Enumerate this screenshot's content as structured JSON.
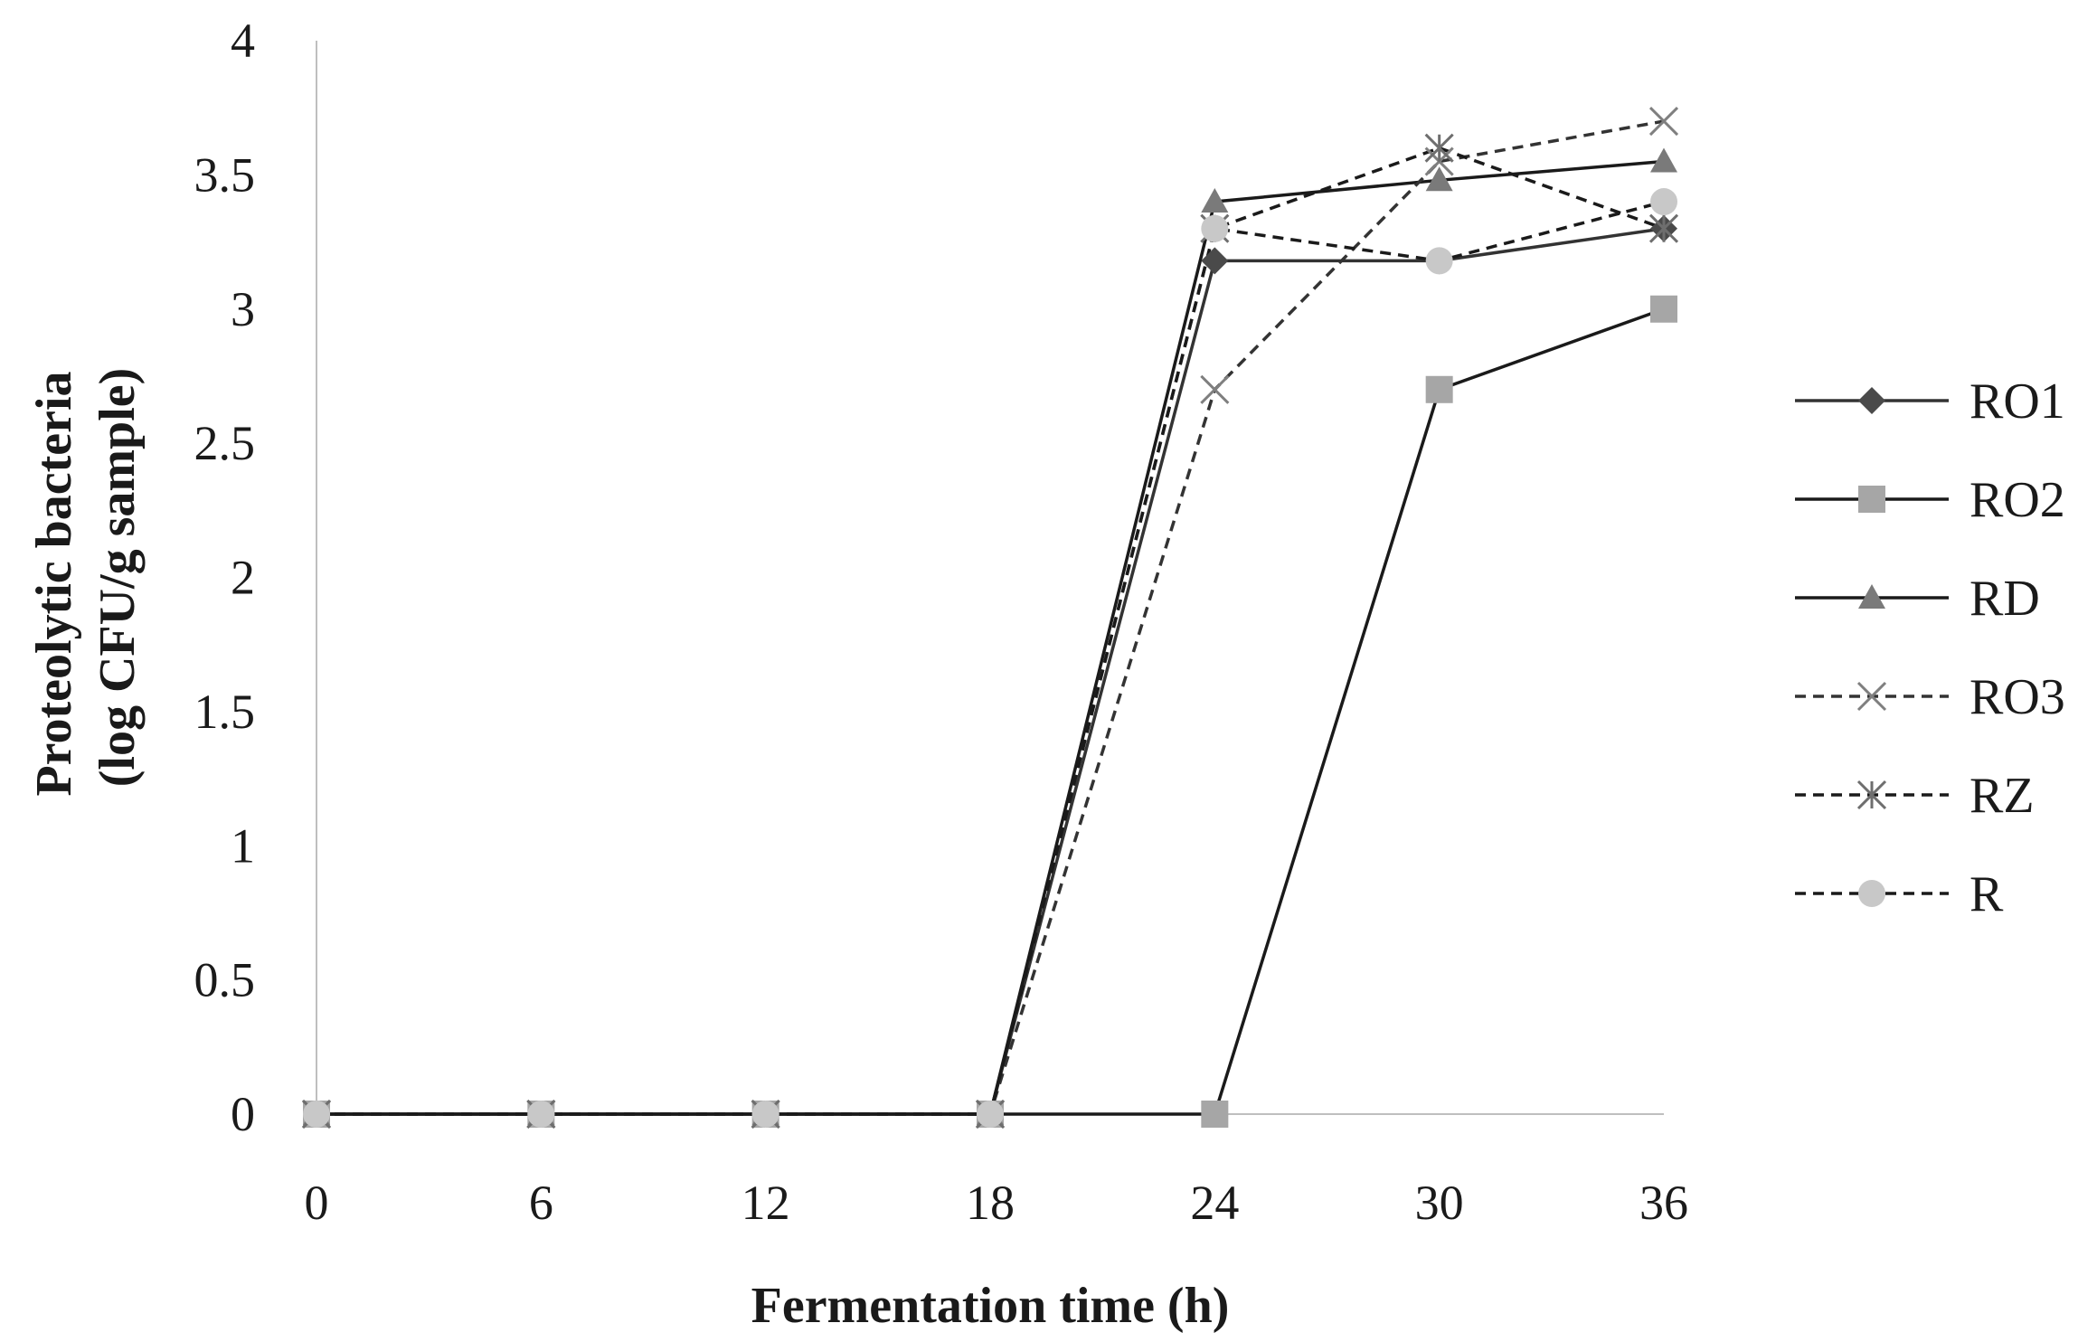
{
  "chart_data": {
    "type": "line",
    "title": "",
    "xlabel": "Fermentation time (h)",
    "ylabel": [
      "Proteolytic bacteria",
      "(log CFU/g sample)"
    ],
    "x": [
      0,
      6,
      12,
      18,
      24,
      30,
      36
    ],
    "x_tick_labels": [
      "0",
      "6",
      "12",
      "18",
      "24",
      "30",
      "36"
    ],
    "ylim": [
      0,
      4
    ],
    "y_ticks": [
      0,
      0.5,
      1,
      1.5,
      2,
      2.5,
      3,
      3.5,
      4
    ],
    "y_tick_labels": [
      "0",
      "0.5",
      "1",
      "1.5",
      "2",
      "2.5",
      "3",
      "3.5",
      "4"
    ],
    "grid": false,
    "legend_position": "right",
    "series": [
      {
        "name": "RO1",
        "values": [
          0,
          0,
          0,
          0,
          3.18,
          3.18,
          3.3
        ],
        "line_color": "#333333",
        "dashed": false,
        "marker": "diamond",
        "marker_color": "#4a4a4a"
      },
      {
        "name": "RO2",
        "values": [
          0,
          0,
          0,
          0,
          0,
          2.7,
          3.0
        ],
        "line_color": "#1a1a1a",
        "dashed": false,
        "marker": "square",
        "marker_color": "#a6a6a6"
      },
      {
        "name": "RD",
        "values": [
          0,
          0,
          0,
          0,
          3.4,
          3.48,
          3.55
        ],
        "line_color": "#1a1a1a",
        "dashed": false,
        "marker": "triangle",
        "marker_color": "#7a7a7a"
      },
      {
        "name": "RO3",
        "values": [
          0,
          0,
          0,
          0,
          2.7,
          3.55,
          3.7
        ],
        "line_color": "#333333",
        "dashed": true,
        "marker": "x",
        "marker_color": "#7f7f7f"
      },
      {
        "name": "RZ",
        "values": [
          0,
          0,
          0,
          0,
          3.3,
          3.6,
          3.3
        ],
        "line_color": "#1a1a1a",
        "dashed": true,
        "marker": "star",
        "marker_color": "#6e6e6e"
      },
      {
        "name": "R",
        "values": [
          0,
          0,
          0,
          0,
          3.3,
          3.18,
          3.4
        ],
        "line_color": "#1a1a1a",
        "dashed": true,
        "marker": "circle",
        "marker_color": "#c8c8c8"
      }
    ]
  },
  "colors": {
    "axis": "#bfbfbf",
    "text": "#1a1a1a"
  }
}
